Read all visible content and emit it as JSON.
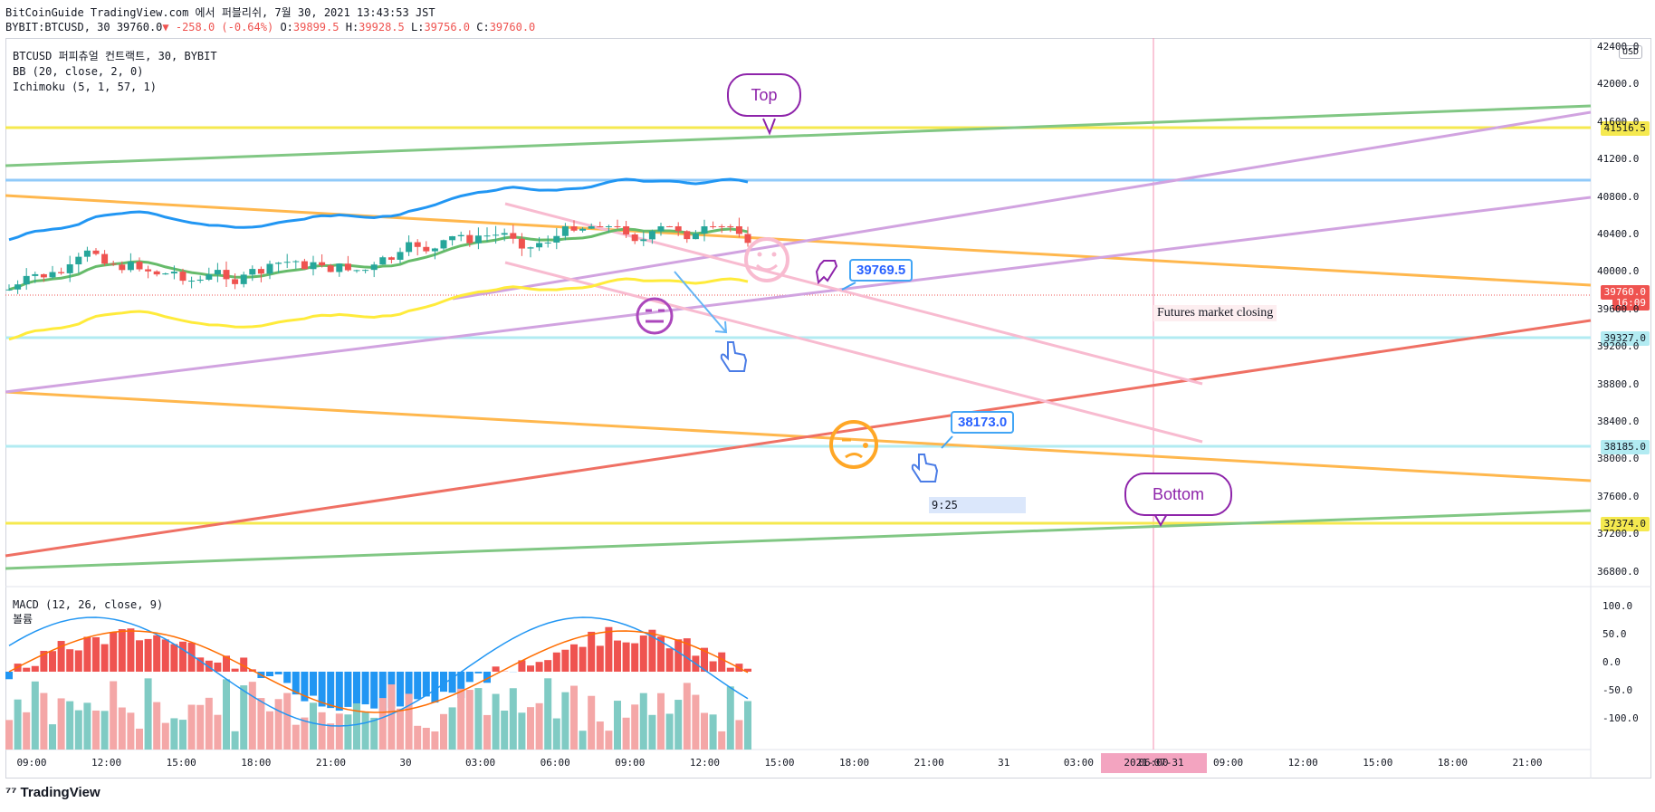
{
  "header": {
    "line1": "BitCoinGuide TradingView.com 에서 퍼블리쉬, 7월 30, 2021 13:43:53 JST",
    "symbol": "BYBIT:BTCUSD, 30 39760.0",
    "change": "▼ -258.0 (-0.64%)",
    "o_label": "O:",
    "o_val": "39899.5",
    "h_label": "H:",
    "h_val": "39928.5",
    "l_label": "L:",
    "l_val": "39756.0",
    "c_label": "C:",
    "c_val": "39760.0"
  },
  "legend": {
    "title": "BTCUSD 퍼피츄얼 컨트랙트, 30, BYBIT",
    "bb": "BB (20, close, 2, 0)",
    "ichimoku": "Ichimoku (5, 1, 57, 1)",
    "macd": "MACD (12, 26, close, 9)",
    "macd_sub": "볼륨"
  },
  "currency": "USD",
  "price_axis": [
    "42400.0",
    "42000.0",
    "41600.0",
    "41200.0",
    "40800.0",
    "40400.0",
    "40000.0",
    "39600.0",
    "39200.0",
    "38800.0",
    "38400.0",
    "38000.0",
    "37600.0",
    "37200.0",
    "36800.0"
  ],
  "macd_axis": [
    "100.0",
    "50.0",
    "0.0",
    "-50.0",
    "-100.0"
  ],
  "time_axis": [
    "09:00",
    "12:00",
    "15:00",
    "18:00",
    "21:00",
    "30",
    "03:00",
    "06:00",
    "09:00",
    "12:00",
    "15:00",
    "18:00",
    "21:00",
    "31",
    "03:00",
    "06:00",
    "09:00",
    "12:00",
    "15:00",
    "18:00",
    "21:00"
  ],
  "price_tags": [
    {
      "label": "41516.5",
      "bg": "#f5e94f",
      "fg": "#131722"
    },
    {
      "label": "39760.0",
      "bg": "#ef5350",
      "fg": "#ffffff"
    },
    {
      "label": "16:09",
      "bg": "#ef5350",
      "fg": "#ffffff"
    },
    {
      "label": "39327.0",
      "bg": "#b2ebf2",
      "fg": "#131722"
    },
    {
      "label": "38185.0",
      "bg": "#b2ebf2",
      "fg": "#131722"
    },
    {
      "label": "37374.0",
      "bg": "#f5e94f",
      "fg": "#131722"
    }
  ],
  "annotations": {
    "top": "Top",
    "bottom": "Bottom",
    "callout1": "39769.5",
    "callout2": "38173.0",
    "futures": "Futures market closing",
    "time_box": "9:25",
    "date_box": "2021-07-31"
  },
  "brand": "TradingView"
}
